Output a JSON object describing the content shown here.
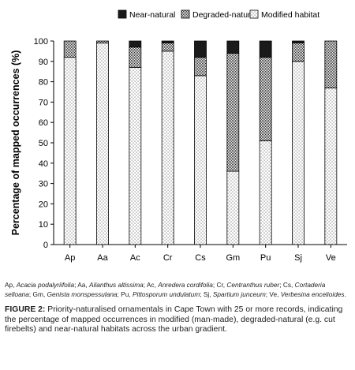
{
  "chart_data": {
    "type": "bar",
    "stacked": true,
    "categories": [
      "Ap",
      "Aa",
      "Ac",
      "Cr",
      "Cs",
      "Gm",
      "Pu",
      "Sj",
      "Ve"
    ],
    "series": [
      {
        "name": "Modified habitat",
        "pattern": "sparse-dots",
        "values": [
          92,
          99,
          87,
          95,
          83,
          36,
          51,
          90,
          77
        ]
      },
      {
        "name": "Degraded-natural",
        "pattern": "dense-dots",
        "values": [
          8,
          1,
          10,
          4,
          9,
          58,
          41,
          9,
          23
        ]
      },
      {
        "name": "Near-natural",
        "pattern": "solid",
        "color": "#1a1a1a",
        "values": [
          0,
          0,
          3,
          1,
          8,
          6,
          8,
          1,
          0
        ]
      }
    ],
    "ylabel": "Percentage of mapped occurrences (%)",
    "xlabel": "",
    "ylim": [
      0,
      100
    ],
    "yticks": [
      0,
      10,
      20,
      30,
      40,
      50,
      60,
      70,
      80,
      90,
      100
    ],
    "grid": false,
    "legend_position": "top",
    "legend_order": [
      "Near-natural",
      "Degraded-natural",
      "Modified habitat"
    ]
  },
  "caption": {
    "abbreviations": [
      {
        "code": "Ap",
        "name": "Acacia podalyriifolia"
      },
      {
        "code": "Aa",
        "name": "Ailanthus altissima"
      },
      {
        "code": "Ac",
        "name": "Anredera cordifolia"
      },
      {
        "code": "Cr",
        "name": "Centranthus ruber"
      },
      {
        "code": "Cs",
        "name": "Cortaderia selloana"
      },
      {
        "code": "Gm",
        "name": "Genista monspessulana"
      },
      {
        "code": "Pu",
        "name": "Pittosporum undulatum"
      },
      {
        "code": "Sj",
        "name": "Spartium junceum"
      },
      {
        "code": "Ve",
        "name": "Verbesina encelioides"
      }
    ],
    "figure_label": "FIGURE 2:",
    "figure_text": "Priority-naturalised ornamentals in Cape Town with 25 or more records, indicating the percentage of mapped occurrences in modified (man-made), degraded-natural (e.g. cut firebelts) and near-natural habitats across the urban gradient."
  }
}
